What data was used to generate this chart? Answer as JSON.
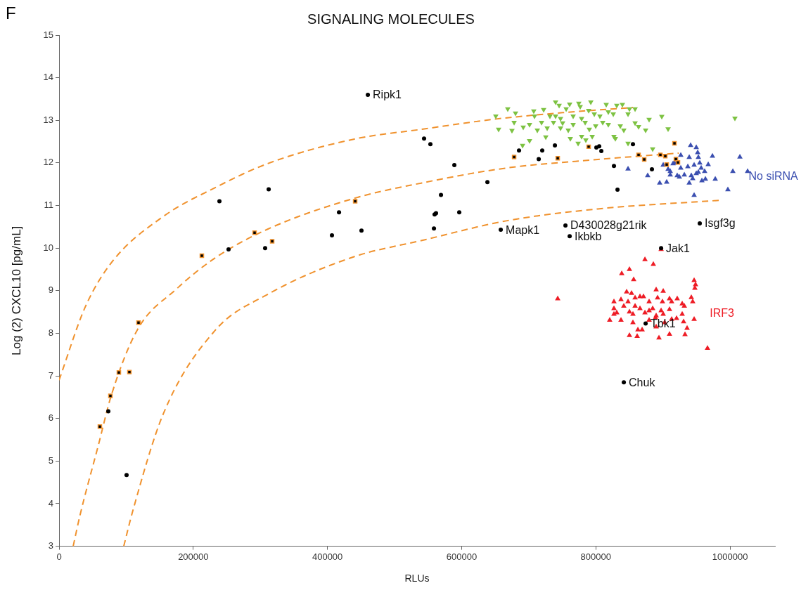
{
  "chart_data": {
    "type": "scatter",
    "title": "SIGNALING MOLECULES",
    "xlabel": "RLUs",
    "ylabel": "Log (2) CXCL10 [pg/mL]",
    "xlim": [
      0,
      1067000
    ],
    "xticks": [
      0,
      200000,
      400000,
      600000,
      800000,
      1000000
    ],
    "ylim": [
      3,
      15
    ],
    "yticks": [
      3,
      4,
      5,
      6,
      7,
      8,
      9,
      10,
      11,
      12,
      13,
      14,
      15
    ],
    "grid": false,
    "legend": false,
    "annotations": [
      "F",
      {
        "text": "Ripk1",
        "x": 460200,
        "y": 13.6
      },
      {
        "text": "Mapk1",
        "x": 658300,
        "y": 10.43
      },
      {
        "text": "D430028g21rik",
        "x": 754700,
        "y": 10.53
      },
      {
        "text": "Ikbkb",
        "x": 761000,
        "y": 10.28
      },
      {
        "text": "Isgf3g",
        "x": 954900,
        "y": 10.58
      },
      {
        "text": "Jak1",
        "x": 897300,
        "y": 10.0
      },
      {
        "text": "Tbk1",
        "x": 874200,
        "y": 8.23
      },
      {
        "text": "Chuk",
        "x": 841700,
        "y": 6.85
      }
    ],
    "series": [
      {
        "type": "line",
        "color": "#f0922e",
        "marker": "none",
        "line_style": "dashed",
        "x": [
          0,
          38800,
          77600,
          155100,
          232700,
          310300,
          440200,
          540900,
          645700,
          750500,
          855300
        ],
        "values": [
          6.9,
          8.61,
          9.65,
          10.74,
          11.42,
          11.98,
          12.56,
          12.79,
          13.02,
          13.18,
          13.3
        ]
      },
      {
        "type": "line",
        "color": "#f0922e",
        "marker": "none",
        "line_style": "dashed",
        "x": [
          21000,
          31400,
          58700,
          77600,
          116300,
          175000,
          232700,
          310300,
          440200,
          540900,
          666700,
          802900,
          923500
        ],
        "values": [
          3.0,
          3.74,
          5.38,
          6.53,
          8.07,
          9.04,
          9.77,
          10.44,
          11.17,
          11.53,
          11.88,
          12.08,
          12.23
        ]
      },
      {
        "type": "line",
        "color": "#f0922e",
        "marker": "none",
        "line_style": "dashed",
        "x": [
          96400,
          109000,
          155100,
          232700,
          310300,
          440200,
          540900,
          666700,
          802900,
          983200
        ],
        "values": [
          3.0,
          3.78,
          6.1,
          8.07,
          8.91,
          9.8,
          10.18,
          10.64,
          10.92,
          11.12
        ]
      },
      {
        "color": "#7dc242",
        "marker": "triangle-down",
        "x": [
          650900,
          668700,
          680300,
          678200,
          655100,
          675000,
          691800,
          701200,
          707500,
          708600,
          722200,
          719100,
          712800,
          725400,
          701200,
          690800,
          740000,
          745300,
          731600,
          736900,
          740000,
          747400,
          750500,
          755800,
          758900,
          761000,
          762000,
          766200,
          766200,
          774600,
          776700,
          778800,
          778800,
          773600,
          784100,
          785100,
          789300,
          792500,
          790300,
          794600,
          797700,
          799800,
          806100,
          810300,
          815500,
          818600,
          818600,
          826000,
          827000,
          829100,
          831200,
          836500,
          839600,
          841700,
          848000,
          848000,
          850100,
          858500,
          858500,
          863700,
          874200,
          879400,
          884700,
          898300,
          907700,
          747400,
          727500,
          1007300
        ],
        "values": [
          13.1,
          13.27,
          13.17,
          12.95,
          12.79,
          12.76,
          12.84,
          12.9,
          13.22,
          13.1,
          13.25,
          12.95,
          12.77,
          12.61,
          12.52,
          12.41,
          13.43,
          13.35,
          13.1,
          12.95,
          13.1,
          13.04,
          12.94,
          13.27,
          12.77,
          13.38,
          12.57,
          13.1,
          12.9,
          13.4,
          13.32,
          13.04,
          12.62,
          12.46,
          12.95,
          12.54,
          13.23,
          13.43,
          12.79,
          12.62,
          13.15,
          12.87,
          13.1,
          12.95,
          13.37,
          13.2,
          12.9,
          13.15,
          12.62,
          12.57,
          13.35,
          12.87,
          13.37,
          12.77,
          13.15,
          12.46,
          13.27,
          13.27,
          12.94,
          12.85,
          12.77,
          13.02,
          12.33,
          13.09,
          12.8,
          12.82,
          12.82,
          13.05
        ]
      },
      {
        "color": "#3b4fb0",
        "marker": "triangle",
        "name": "No siRNA",
        "x": [
          941300,
          949700,
          951800,
          952800,
          926600,
          939200,
          973800,
          1014700,
          917200,
          900400,
          907700,
          915100,
          926600,
          937100,
          946500,
          954900,
          967500,
          957000,
          962200,
          848000,
          877300,
          895200,
          905600,
          910900,
          910900,
          921300,
          924500,
          931900,
          942300,
          944400,
          939200,
          949700,
          952800,
          958100,
          963300,
          978000,
          1004200,
          1026200,
          996800,
          946500
        ],
        "values": [
          12.41,
          12.36,
          12.24,
          12.13,
          12.18,
          12.13,
          12.16,
          12.14,
          12.0,
          11.95,
          11.85,
          11.98,
          11.88,
          11.91,
          11.95,
          12.0,
          11.96,
          11.88,
          11.8,
          11.86,
          11.7,
          11.53,
          11.55,
          11.72,
          11.8,
          11.7,
          11.67,
          11.72,
          11.7,
          11.63,
          11.53,
          11.75,
          11.78,
          11.58,
          11.62,
          11.62,
          11.8,
          11.8,
          11.37,
          11.24
        ]
      },
      {
        "color": "#ee1c25",
        "marker": "triangle",
        "name": "IRF3",
        "x": [
          743200,
          873200,
          885700,
          850100,
          838600,
          856400,
          946500,
          948600,
          947600,
          942300,
          944400,
          889900,
          900400,
          845900,
          853200,
          827000,
          837500,
          848000,
          858500,
          865800,
          871000,
          879400,
          892000,
          899300,
          909800,
          913000,
          921300,
          928700,
          931900,
          827000,
          831200,
          827000,
          841700,
          850100,
          855300,
          858500,
          865800,
          873200,
          879400,
          884700,
          889900,
          897300,
          900400,
          909800,
          928700,
          820700,
          837500,
          855300,
          879400,
          888900,
          902500,
          913000,
          920300,
          930800,
          946500,
          936000,
          889900,
          862700,
          869000,
          850100,
          861600,
          894100,
          909800,
          932900,
          966400,
          897300
        ],
        "values": [
          8.81,
          9.73,
          9.62,
          9.5,
          9.4,
          9.26,
          9.24,
          9.14,
          9.06,
          8.84,
          8.74,
          9.02,
          8.99,
          8.97,
          8.94,
          8.74,
          8.79,
          8.74,
          8.83,
          8.86,
          8.86,
          8.74,
          8.83,
          8.74,
          8.81,
          8.74,
          8.81,
          8.69,
          8.64,
          8.58,
          8.48,
          8.45,
          8.64,
          8.5,
          8.45,
          8.64,
          8.58,
          8.48,
          8.53,
          8.58,
          8.41,
          8.53,
          8.45,
          8.56,
          8.45,
          8.31,
          8.31,
          8.25,
          8.31,
          8.36,
          8.25,
          8.33,
          8.35,
          8.27,
          8.33,
          8.12,
          8.15,
          8.08,
          8.08,
          7.95,
          7.93,
          7.89,
          7.98,
          7.97,
          7.65,
          9.97
        ]
      },
      {
        "color": "#f0922e",
        "marker": "square",
        "x": [
          212800,
          291400,
          317600,
          118400,
          89100,
          104800,
          76500,
          60800,
          441300,
          678200,
          743200,
          789300,
          863700,
          872100,
          896200,
          903500,
          917200,
          919300,
          922400,
          905600
        ],
        "values": [
          9.82,
          10.36,
          10.16,
          8.25,
          7.08,
          7.09,
          6.53,
          5.81,
          11.1,
          12.14,
          12.11,
          12.38,
          12.19,
          12.08,
          12.19,
          12.16,
          12.46,
          12.09,
          12.01,
          11.96
        ]
      },
      {
        "color": "#000000",
        "marker": "circle",
        "x": [
          460200,
          312400,
          239000,
          417200,
          406700,
          252600,
          307100,
          73400,
          100600,
          544000,
          553400,
          589100,
          638400,
          569200,
          561800,
          559700,
          596400,
          450700,
          558700,
          658300,
          685500,
          720100,
          714900,
          739000,
          800800,
          805000,
          808200,
          827000,
          832300,
          855300,
          883600,
          754700,
          761000,
          954900,
          897300,
          874200,
          841700
        ],
        "values": [
          13.6,
          11.38,
          11.1,
          10.84,
          10.3,
          9.97,
          10.0,
          6.17,
          4.67,
          12.57,
          12.44,
          11.95,
          11.55,
          11.25,
          10.82,
          10.79,
          10.84,
          10.41,
          10.46,
          10.43,
          12.29,
          12.29,
          12.09,
          12.41,
          12.36,
          12.39,
          12.28,
          11.93,
          11.37,
          12.44,
          11.85,
          10.53,
          10.28,
          10.58,
          10.0,
          8.23,
          6.85
        ]
      }
    ]
  }
}
